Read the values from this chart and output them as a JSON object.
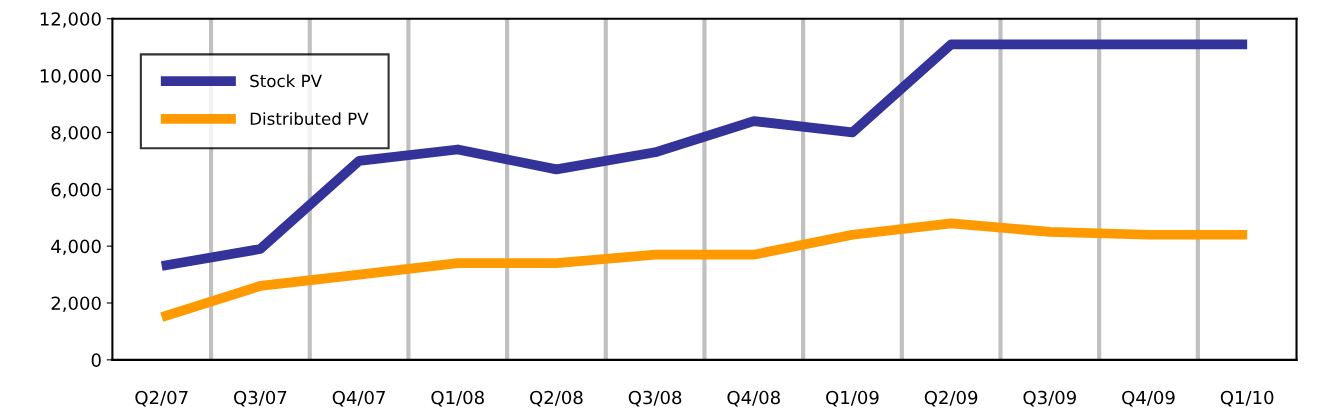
{
  "chart_data": {
    "type": "line",
    "categories": [
      "Q2/07",
      "Q3/07",
      "Q4/07",
      "Q1/08",
      "Q2/08",
      "Q3/08",
      "Q4/08",
      "Q1/09",
      "Q2/09",
      "Q3/09",
      "Q4/09",
      "Q1/10"
    ],
    "series": [
      {
        "name": "Stock PV",
        "color": "#333399",
        "values": [
          3300,
          3900,
          7000,
          7400,
          6700,
          7300,
          8400,
          8000,
          11100,
          11100,
          11100,
          11100
        ]
      },
      {
        "name": "Distributed PV",
        "color": "#ff9900",
        "values": [
          1500,
          2600,
          3000,
          3400,
          3400,
          3700,
          3700,
          4400,
          4800,
          4500,
          4400,
          4400
        ]
      }
    ],
    "ylim": [
      0,
      12000
    ],
    "yticks": [
      0,
      {
        "value": 2000,
        "label": "2,000"
      },
      {
        "value": 4000,
        "label": "4,000"
      },
      {
        "value": 6000,
        "label": "6,000"
      },
      {
        "value": 8000,
        "label": "8,000"
      },
      {
        "value": 10000,
        "label": "10,000"
      },
      {
        "value": 12000,
        "label": "12,000"
      }
    ],
    "grid": "x",
    "legend": "top left",
    "marker": "none",
    "line_style": "solid"
  }
}
